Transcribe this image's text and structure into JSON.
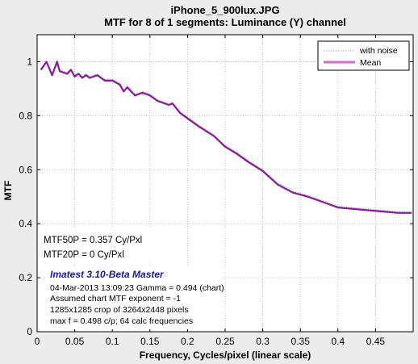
{
  "figure": {
    "title_line1": "iPhone_5_900lux.JPG",
    "title_line2": "MTF for 8 of 1 segments:  Luminance (Y) channel",
    "brand": "Imatest 3.10-Beta Master",
    "mtf50": "MTF50P = 0.357 Cy/Pxl",
    "mtf20": "MTF20P = 0 Cy/Pxl",
    "info": [
      "04-Mar-2013 13:09:23    Gamma = 0.494 (chart)",
      "Assumed chart MTF exponent = -1",
      "1285x1285 crop of 3264x2448 pixels",
      "max f = 0.498 c/p;  64 calc frequencies"
    ],
    "colors": {
      "background": "#ececec",
      "plot_bg": "#ffffff",
      "noise_line": "#a8a8a8",
      "mean_line": "#8a1a9a",
      "legend_mean": "#d26ad2"
    }
  },
  "chart_data": {
    "type": "line",
    "title": "iPhone_5_900lux.JPG\nMTF for 8 of 1 segments:  Luminance (Y) channel",
    "xlabel": "Frequency, Cycles/pixel (linear scale)",
    "ylabel": "MTF",
    "xlim": [
      0,
      0.5
    ],
    "ylim": [
      0,
      1.1
    ],
    "x_ticks": [
      "0",
      "0.05",
      "0.1",
      "0.15",
      "0.2",
      "0.25",
      "0.3",
      "0.35",
      "0.4",
      "0.45"
    ],
    "y_ticks": [
      "0",
      "0.2",
      "0.4",
      "0.6",
      "0.8",
      "1"
    ],
    "grid": true,
    "legend": {
      "placement": "top-right",
      "entries": [
        "with noise",
        "Mean"
      ]
    },
    "series": [
      {
        "name": "with noise",
        "style": "dotted",
        "x": [
          0.005,
          0.0125,
          0.02,
          0.0265,
          0.03,
          0.04,
          0.045,
          0.05,
          0.055,
          0.06,
          0.065,
          0.07,
          0.08,
          0.085,
          0.09,
          0.1,
          0.11,
          0.115,
          0.12,
          0.13,
          0.14,
          0.15,
          0.16,
          0.175,
          0.18,
          0.19,
          0.2,
          0.215,
          0.235,
          0.25,
          0.265,
          0.28,
          0.3,
          0.32,
          0.34,
          0.36,
          0.38,
          0.4,
          0.42,
          0.44,
          0.46,
          0.48,
          0.498
        ],
        "y": [
          0.975,
          1.0,
          0.955,
          1.005,
          0.97,
          0.96,
          0.975,
          0.95,
          0.96,
          0.945,
          0.955,
          0.945,
          0.955,
          0.945,
          0.935,
          0.935,
          0.92,
          0.895,
          0.91,
          0.88,
          0.89,
          0.88,
          0.86,
          0.845,
          0.85,
          0.815,
          0.795,
          0.765,
          0.73,
          0.69,
          0.665,
          0.635,
          0.6,
          0.55,
          0.52,
          0.505,
          0.485,
          0.465,
          0.46,
          0.455,
          0.45,
          0.445,
          0.445
        ]
      },
      {
        "name": "Mean",
        "style": "solid",
        "x": [
          0.005,
          0.0125,
          0.02,
          0.0265,
          0.03,
          0.04,
          0.045,
          0.05,
          0.055,
          0.06,
          0.065,
          0.07,
          0.08,
          0.085,
          0.09,
          0.1,
          0.11,
          0.115,
          0.12,
          0.13,
          0.14,
          0.15,
          0.16,
          0.175,
          0.18,
          0.19,
          0.2,
          0.215,
          0.235,
          0.25,
          0.265,
          0.28,
          0.3,
          0.32,
          0.34,
          0.36,
          0.38,
          0.4,
          0.42,
          0.44,
          0.46,
          0.48,
          0.498
        ],
        "y": [
          0.97,
          1.0,
          0.95,
          1.0,
          0.965,
          0.955,
          0.97,
          0.945,
          0.955,
          0.94,
          0.95,
          0.94,
          0.95,
          0.94,
          0.93,
          0.93,
          0.915,
          0.89,
          0.905,
          0.875,
          0.885,
          0.875,
          0.855,
          0.84,
          0.845,
          0.81,
          0.79,
          0.76,
          0.725,
          0.685,
          0.66,
          0.63,
          0.595,
          0.545,
          0.515,
          0.5,
          0.48,
          0.46,
          0.455,
          0.45,
          0.445,
          0.44,
          0.44
        ]
      }
    ]
  }
}
